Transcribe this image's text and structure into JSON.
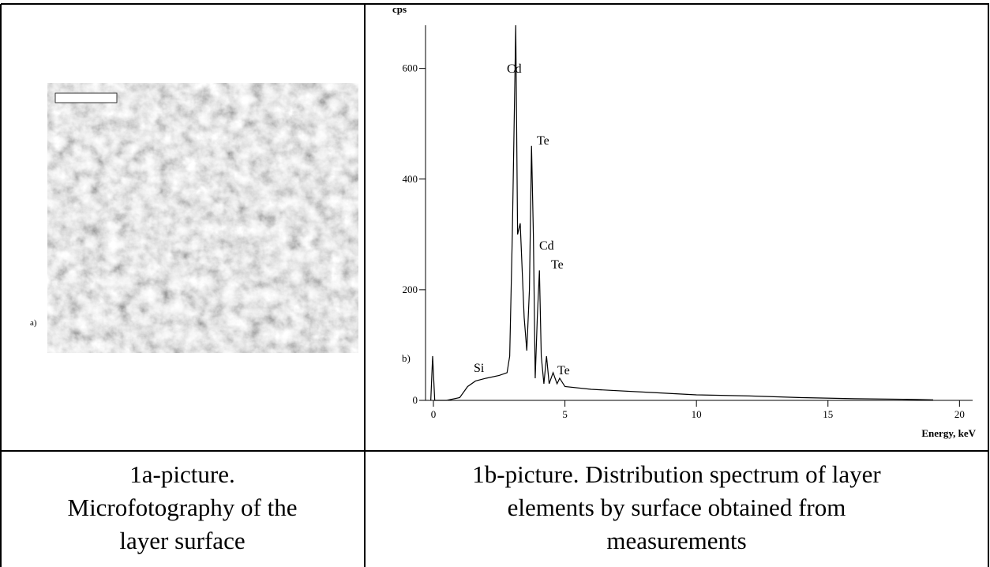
{
  "figure_a": {
    "label": "a)"
  },
  "chart_data": {
    "type": "line",
    "y_label": "cps",
    "x_label": "Energy, keV",
    "series_label": "b)",
    "x": [
      -0.1,
      -0.03,
      0.05,
      0.5,
      1.0,
      1.3,
      1.6,
      2.0,
      2.5,
      2.8,
      2.9,
      3.0,
      3.13,
      3.2,
      3.3,
      3.45,
      3.55,
      3.65,
      3.73,
      3.8,
      3.87,
      3.95,
      4.03,
      4.1,
      4.2,
      4.3,
      4.4,
      4.55,
      4.7,
      4.8,
      5.0,
      6,
      8,
      10,
      12,
      14,
      16,
      18,
      19
    ],
    "values": [
      0,
      80,
      0,
      0,
      5,
      25,
      35,
      40,
      45,
      50,
      80,
      300,
      678,
      300,
      320,
      150,
      90,
      200,
      460,
      300,
      40,
      150,
      235,
      80,
      30,
      80,
      30,
      50,
      30,
      40,
      25,
      20,
      15,
      10,
      8,
      5,
      3,
      2,
      1
    ],
    "color": "#000000",
    "xlim": [
      -0.3,
      20.5
    ],
    "ylim": [
      0,
      678
    ],
    "xticks": [
      0,
      5,
      10,
      15,
      20
    ],
    "yticks": [
      0,
      200,
      400,
      600
    ],
    "annotations": [
      "Cd",
      "Te",
      "Cd",
      "Te",
      "Si",
      "Te"
    ]
  },
  "captions": {
    "left": [
      "1a-picture.",
      "Microfotography of the",
      "layer surface"
    ],
    "right": [
      "1b-picture. Distribution spectrum of layer",
      "elements by surface obtained from",
      "measurements"
    ]
  }
}
